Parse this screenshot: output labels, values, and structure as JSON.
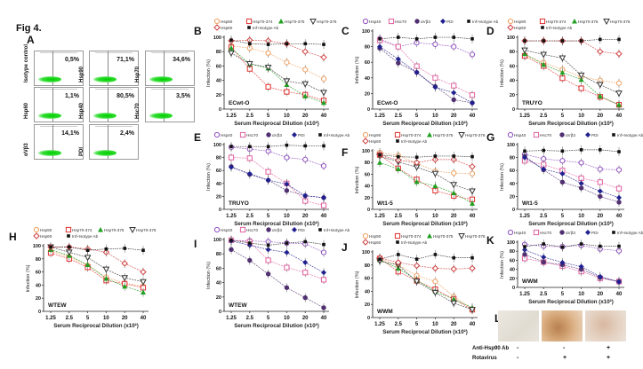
{
  "figure": {
    "title": "Fig 4.",
    "panel_a_letter": "A",
    "flow_panels": [
      {
        "label": "Isotype control",
        "value": "0,5%"
      },
      {
        "label": "Hsp90",
        "value": "71,1%"
      },
      {
        "label": "Hsp70",
        "value": "34,6%"
      },
      {
        "label": "Hsp60",
        "value": "1,1%"
      },
      {
        "label": "Hsp40",
        "value": "80,5%"
      },
      {
        "label": "Hsc70",
        "value": "3,5%"
      },
      {
        "label": "αVβ3",
        "value": "14,1%"
      },
      {
        "label": "PDI",
        "value": "2,4%"
      }
    ],
    "panel_l": {
      "letter": "L",
      "rows": [
        {
          "label": "Anti-Hsp90 Ab",
          "signs": [
            "-",
            "-",
            "+"
          ]
        },
        {
          "label": "Rotavirus",
          "signs": [
            "-",
            "+",
            "+"
          ]
        }
      ]
    }
  },
  "series_styles": {
    "Hsp90": {
      "color": "#f0a060",
      "marker": "circle-open"
    },
    "Hsp70-374": {
      "color": "#e03030",
      "marker": "square-open"
    },
    "Hsp70-375": {
      "color": "#20a020",
      "marker": "triangle-up"
    },
    "Hsp70-376": {
      "color": "#333333",
      "marker": "triangle-down"
    },
    "Hsp60": {
      "color": "#d04040",
      "marker": "diamond-open"
    },
    "Inf+Isotype Ab": {
      "color": "#111111",
      "marker": "star"
    },
    "Hsp40": {
      "color": "#9050c0",
      "marker": "circle-open"
    },
    "Hsc70": {
      "color": "#e060a0",
      "marker": "square-open"
    },
    "αVβ3": {
      "color": "#503070",
      "marker": "circle"
    },
    "PDI": {
      "color": "#202090",
      "marker": "diamond"
    }
  },
  "chart_data": [
    {
      "panel": "B",
      "type": "line",
      "cell_label": "ECwt-O",
      "title": "",
      "xlabel": "Serum Reciprocal Dilution (x10²)",
      "ylabel": "Infection (%)",
      "categories": [
        "1.25",
        "2.5",
        "5",
        "10",
        "20",
        "40"
      ],
      "ylim": [
        0,
        100
      ],
      "yticks": [
        0,
        20,
        40,
        60,
        80,
        100
      ],
      "legend": [
        "Hsp90",
        "Hsp70-374",
        "Hsp70-375",
        "Hsp70-376",
        "Hsp60",
        "Inf+Isotype Ab"
      ],
      "series": [
        {
          "name": "Hsp90",
          "values": [
            88,
            85,
            78,
            65,
            55,
            42
          ]
        },
        {
          "name": "Hsp70-374",
          "values": [
            86,
            56,
            31,
            24,
            20,
            12
          ]
        },
        {
          "name": "Hsp70-375",
          "values": [
            85,
            63,
            57,
            34,
            18,
            9
          ]
        },
        {
          "name": "Hsp70-376",
          "values": [
            78,
            63,
            58,
            39,
            35,
            23
          ]
        },
        {
          "name": "Hsp60",
          "values": [
            95,
            96,
            95,
            91,
            80,
            72
          ]
        },
        {
          "name": "Inf+Isotype Ab",
          "values": [
            96,
            91,
            90,
            91,
            91,
            90
          ]
        }
      ]
    },
    {
      "panel": "C",
      "type": "line",
      "cell_label": "ECwt-O",
      "title": "",
      "xlabel": "Serum Reciprocal Dilution (x10²)",
      "ylabel": "Infection (%)",
      "categories": [
        "1.25",
        "2.5",
        "5",
        "10",
        "20",
        "40"
      ],
      "ylim": [
        0,
        100
      ],
      "yticks": [
        0,
        20,
        40,
        60,
        80,
        100
      ],
      "legend": [
        "Hsp40",
        "Hsc70",
        "αVβ3",
        "PDI",
        "Inf+Isotype Ab"
      ],
      "series": [
        {
          "name": "Hsp40",
          "values": [
            90,
            80,
            85,
            83,
            80,
            70
          ]
        },
        {
          "name": "Hsc70",
          "values": [
            88,
            80,
            55,
            40,
            30,
            18
          ]
        },
        {
          "name": "αVβ3",
          "values": [
            78,
            59,
            47,
            29,
            12,
            8
          ]
        },
        {
          "name": "PDI",
          "values": [
            80,
            64,
            47,
            28,
            21,
            8
          ]
        },
        {
          "name": "Inf+Isotype Ab",
          "values": [
            90,
            92,
            90,
            92,
            92,
            90
          ]
        }
      ]
    },
    {
      "panel": "D",
      "type": "line",
      "cell_label": "TRUYO",
      "title": "",
      "xlabel": "Serum Reciprocal Dilution (x10²)",
      "ylabel": "Infection (%)",
      "categories": [
        "1.25",
        "2.5",
        "5",
        "10",
        "20",
        "40"
      ],
      "ylim": [
        0,
        100
      ],
      "yticks": [
        0,
        20,
        40,
        60,
        80,
        100
      ],
      "legend": [
        "Hsp90",
        "Hsp70-374",
        "Hsp70-375",
        "Hsp70-376",
        "Hsp60",
        "Inf+Isotype Ab"
      ],
      "series": [
        {
          "name": "Hsp90",
          "values": [
            75,
            65,
            55,
            45,
            40,
            36
          ]
        },
        {
          "name": "Hsp70-374",
          "values": [
            74,
            60,
            43,
            29,
            17,
            6
          ]
        },
        {
          "name": "Hsp70-375",
          "values": [
            77,
            62,
            51,
            41,
            18,
            6
          ]
        },
        {
          "name": "Hsp70-376",
          "values": [
            82,
            76,
            71,
            47,
            34,
            22
          ]
        },
        {
          "name": "Hsp60",
          "values": [
            95,
            95,
            95,
            95,
            80,
            77
          ]
        },
        {
          "name": "Inf+Isotype Ab",
          "values": [
            95,
            95,
            95,
            95,
            97,
            97
          ]
        }
      ]
    },
    {
      "panel": "E",
      "type": "line",
      "cell_label": "TRUYO",
      "title": "",
      "xlabel": "Serum Reciprocal Dilution (x10²)",
      "ylabel": "Infection (%)",
      "categories": [
        "1.25",
        "2.5",
        "5",
        "10",
        "20",
        "40"
      ],
      "ylim": [
        0,
        100
      ],
      "yticks": [
        0,
        20,
        40,
        60,
        80,
        100
      ],
      "legend": [
        "Hsp40",
        "Hsc70",
        "αVβ3",
        "PDI",
        "Inf+Isotype Ab"
      ],
      "series": [
        {
          "name": "Hsp40",
          "values": [
            96,
            93,
            90,
            80,
            77,
            67
          ]
        },
        {
          "name": "Hsc70",
          "values": [
            80,
            79,
            58,
            40,
            13,
            6
          ]
        },
        {
          "name": "αVβ3",
          "values": [
            66,
            54,
            45,
            29,
            21,
            18
          ]
        },
        {
          "name": "PDI",
          "values": [
            65,
            55,
            45,
            39,
            21,
            18
          ]
        },
        {
          "name": "Inf+Isotype Ab",
          "values": [
            97,
            97,
            97,
            99,
            98,
            98
          ]
        }
      ]
    },
    {
      "panel": "F",
      "type": "line",
      "cell_label": "Wt1-5",
      "title": "",
      "xlabel": "Serum Reciprocal Dilution (x10²)",
      "ylabel": "Infection (%)",
      "categories": [
        "1.25",
        "2.5",
        "5",
        "10",
        "20",
        "40"
      ],
      "ylim": [
        0,
        100
      ],
      "yticks": [
        0,
        20,
        40,
        60,
        80,
        100
      ],
      "legend": [
        "Hsp90",
        "Hsp70-374",
        "Hsp70-375",
        "Hsp70-376",
        "Hsp60",
        "Inf+Isotype Ab"
      ],
      "series": [
        {
          "name": "Hsp90",
          "values": [
            97,
            92,
            79,
            65,
            62,
            61
          ]
        },
        {
          "name": "Hsp70-374",
          "values": [
            93,
            70,
            51,
            32,
            23,
            17
          ]
        },
        {
          "name": "Hsp70-375",
          "values": [
            80,
            69,
            47,
            40,
            28,
            10
          ]
        },
        {
          "name": "Hsp70-376",
          "values": [
            91,
            81,
            72,
            61,
            42,
            31
          ]
        },
        {
          "name": "Hsp60",
          "values": [
            93,
            84,
            80,
            85,
            85,
            73
          ]
        },
        {
          "name": "Inf+Isotype Ab",
          "values": [
            93,
            90,
            89,
            91,
            91,
            90
          ]
        }
      ]
    },
    {
      "panel": "G",
      "type": "line",
      "cell_label": "Wt1-5",
      "title": "",
      "xlabel": "Serum Reciprocal Dilution (x10²)",
      "ylabel": "Infection (%)",
      "categories": [
        "1.25",
        "2.5",
        "5",
        "10",
        "20",
        "40"
      ],
      "ylim": [
        0,
        100
      ],
      "yticks": [
        0,
        20,
        40,
        60,
        80,
        100
      ],
      "legend": [
        "Hsp40",
        "Hsc70",
        "αVβ3",
        "PDI",
        "Inf+Isotype Ab"
      ],
      "series": [
        {
          "name": "Hsp40",
          "values": [
            85,
            78,
            75,
            72,
            62,
            61
          ]
        },
        {
          "name": "Hsc70",
          "values": [
            75,
            69,
            60,
            48,
            42,
            32
          ]
        },
        {
          "name": "αVβ3",
          "values": [
            82,
            61,
            42,
            33,
            20,
            11
          ]
        },
        {
          "name": "PDI",
          "values": [
            80,
            62,
            55,
            40,
            28,
            18
          ]
        },
        {
          "name": "Inf+Isotype Ab",
          "values": [
            90,
            91,
            90,
            92,
            92,
            89
          ]
        }
      ]
    },
    {
      "panel": "H",
      "type": "line",
      "cell_label": "WTEW",
      "title": "",
      "xlabel": "Serum Reciprocal Dilution (x10²)",
      "ylabel": "Infection (%)",
      "categories": [
        "1.25",
        "2.5",
        "5",
        "10",
        "20",
        "40"
      ],
      "ylim": [
        0,
        100
      ],
      "yticks": [
        0,
        20,
        40,
        60,
        80,
        100
      ],
      "legend": [
        "Hsp90",
        "Hsp70-374",
        "Hsp70-375",
        "Hsp70-376",
        "Hsp60",
        "Inf+Isotype Ab"
      ],
      "series": [
        {
          "name": "Hsp90",
          "values": [
            92,
            83,
            70,
            52,
            43,
            38
          ]
        },
        {
          "name": "Hsp70-374",
          "values": [
            89,
            80,
            67,
            47,
            42,
            36
          ]
        },
        {
          "name": "Hsp70-375",
          "values": [
            94,
            85,
            71,
            50,
            38,
            29
          ]
        },
        {
          "name": "Hsp70-376",
          "values": [
            98,
            90,
            82,
            64,
            51,
            45
          ]
        },
        {
          "name": "Hsp60",
          "values": [
            98,
            98,
            95,
            90,
            73,
            60
          ]
        },
        {
          "name": "Inf+Isotype Ab",
          "values": [
            98,
            98,
            93,
            95,
            96,
            93
          ]
        }
      ]
    },
    {
      "panel": "I",
      "type": "line",
      "cell_label": "WTEW",
      "title": "",
      "xlabel": "Serum Reciprocal Dilution (x10²)",
      "ylabel": "Infection (%)",
      "categories": [
        "1.25",
        "2.5",
        "5",
        "10",
        "20",
        "40"
      ],
      "ylim": [
        0,
        100
      ],
      "yticks": [
        0,
        20,
        40,
        60,
        80,
        100
      ],
      "legend": [
        "Hsp40",
        "Hsc70",
        "αVβ3",
        "PDI",
        "Inf+Isotype Ab"
      ],
      "series": [
        {
          "name": "Hsp40",
          "values": [
            99,
            98,
            97,
            95,
            94,
            82
          ]
        },
        {
          "name": "Hsc70",
          "values": [
            99,
            97,
            71,
            61,
            54,
            44
          ]
        },
        {
          "name": "αVβ3",
          "values": [
            86,
            71,
            52,
            33,
            19,
            5
          ]
        },
        {
          "name": "PDI",
          "values": [
            98,
            92,
            86,
            82,
            68,
            54
          ]
        },
        {
          "name": "Inf+Isotype Ab",
          "values": [
            99,
            95,
            92,
            95,
            97,
            93
          ]
        }
      ]
    },
    {
      "panel": "J",
      "type": "line",
      "cell_label": "WWM",
      "title": "",
      "xlabel": "Serum Reciprocal Dilution (x10²)",
      "ylabel": "Infection (%)",
      "categories": [
        "1.25",
        "2.5",
        "5",
        "10",
        "20",
        "40"
      ],
      "ylim": [
        0,
        100
      ],
      "yticks": [
        0,
        20,
        40,
        60,
        80,
        100
      ],
      "legend": [
        "Hsp90",
        "Hsp70-374",
        "Hsp70-375",
        "Hsp70-376",
        "Hsp60",
        "Inf+Isotype Ab"
      ],
      "series": [
        {
          "name": "Hsp90",
          "values": [
            90,
            80,
            64,
            55,
            32,
            13
          ]
        },
        {
          "name": "Hsp70-374",
          "values": [
            90,
            70,
            56,
            43,
            28,
            12
          ]
        },
        {
          "name": "Hsp70-375",
          "values": [
            88,
            75,
            57,
            40,
            28,
            15
          ]
        },
        {
          "name": "Hsp70-376",
          "values": [
            86,
            80,
            55,
            38,
            22,
            12
          ]
        },
        {
          "name": "Hsp60",
          "values": [
            91,
            84,
            79,
            75,
            74,
            75
          ]
        },
        {
          "name": "Inf+Isotype Ab",
          "values": [
            89,
            96,
            89,
            96,
            91,
            91
          ]
        }
      ]
    },
    {
      "panel": "K",
      "type": "line",
      "cell_label": "WWM",
      "title": "",
      "xlabel": "Serum Reciprocal Dilution (x10²)",
      "ylabel": "Infection (%)",
      "categories": [
        "1.25",
        "2.5",
        "5",
        "10",
        "20",
        "40"
      ],
      "ylim": [
        0,
        100
      ],
      "yticks": [
        0,
        20,
        40,
        60,
        80,
        100
      ],
      "legend": [
        "Hsp40",
        "Hsc70",
        "αVβ3",
        "PDI",
        "Inf+Isotype Ab"
      ],
      "series": [
        {
          "name": "Hsp40",
          "values": [
            95,
            91,
            90,
            93,
            85,
            81
          ]
        },
        {
          "name": "Hsc70",
          "values": [
            64,
            56,
            47,
            35,
            20,
            13
          ]
        },
        {
          "name": "αVβ3",
          "values": [
            73,
            56,
            50,
            40,
            22,
            13
          ]
        },
        {
          "name": "PDI",
          "values": [
            83,
            67,
            55,
            46,
            24,
            12
          ]
        },
        {
          "name": "Inf+Isotype Ab",
          "values": [
            90,
            96,
            89,
            96,
            91,
            91
          ]
        }
      ]
    }
  ]
}
